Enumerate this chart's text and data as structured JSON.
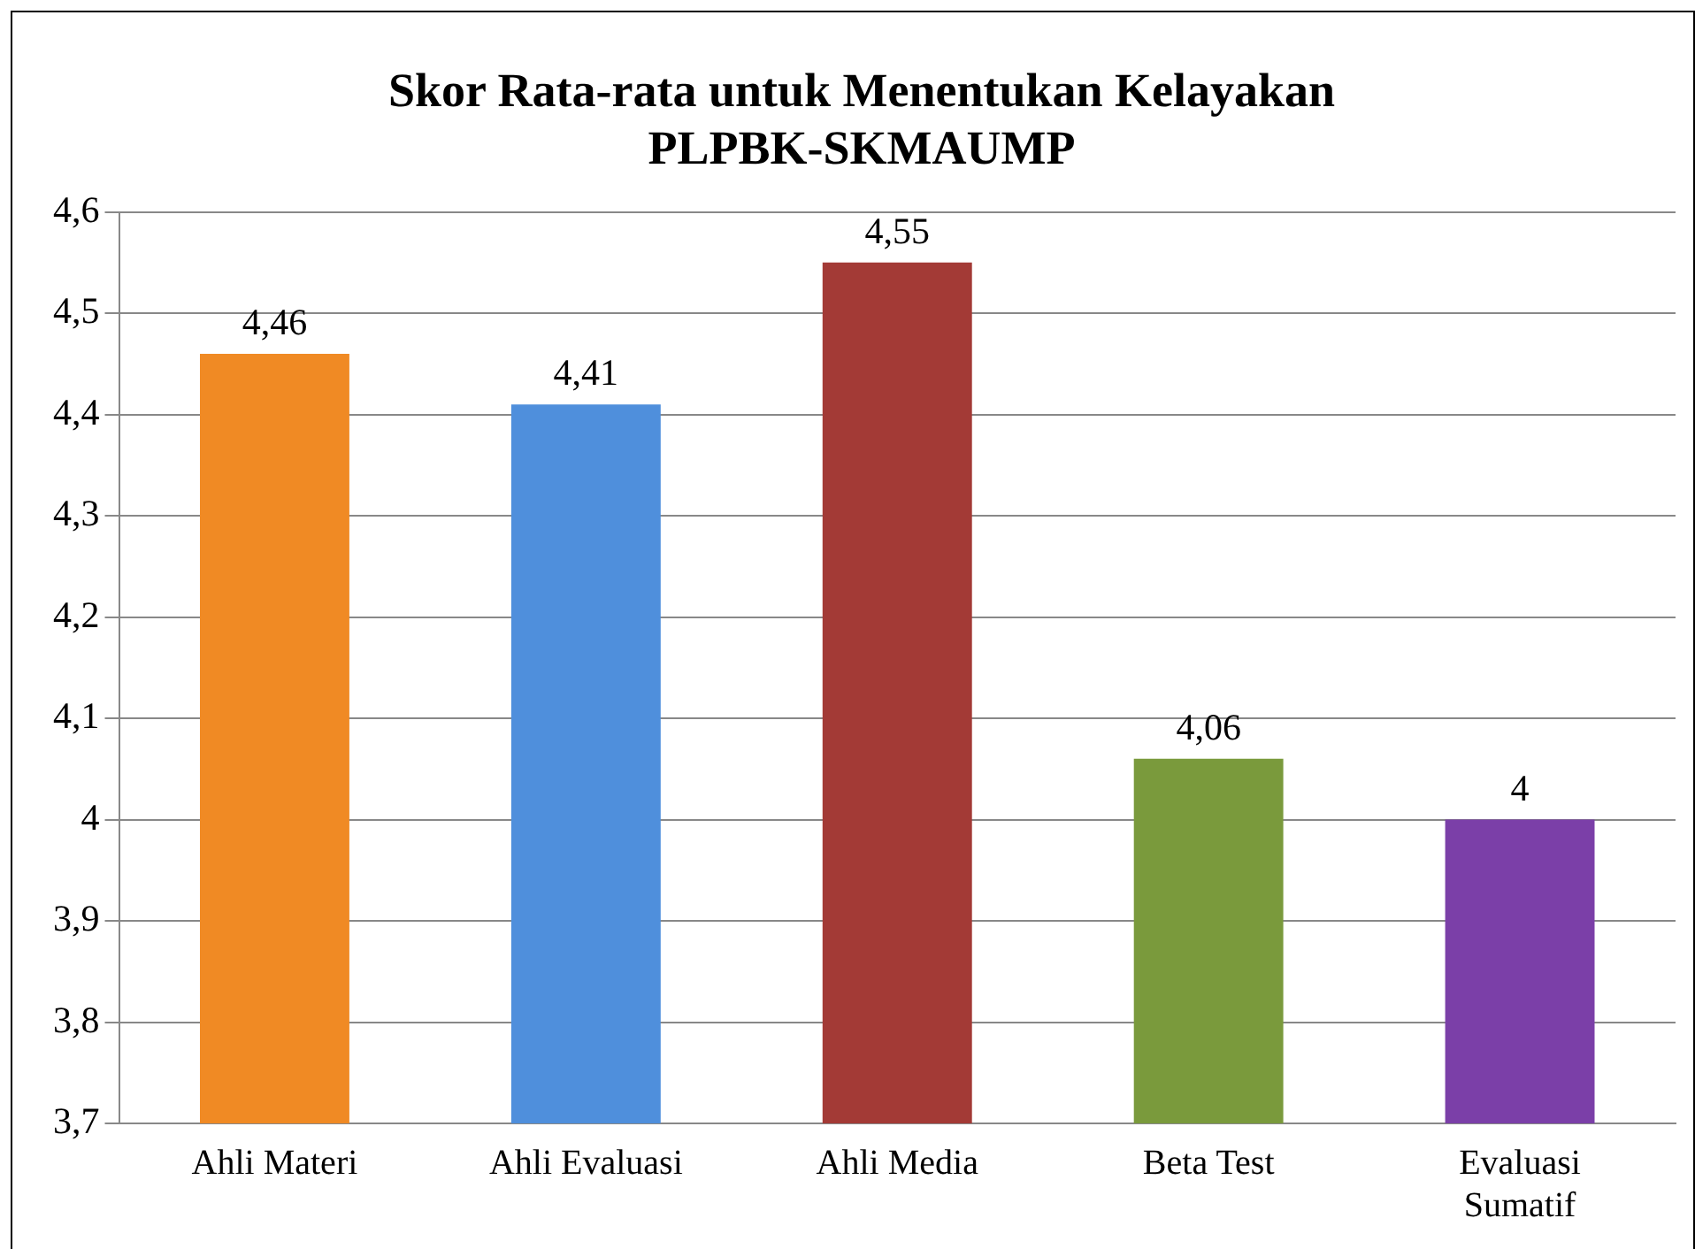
{
  "chart_data": {
    "type": "bar",
    "title": "Skor Rata-rata untuk Menentukan Kelayakan\nPLPBK-SKMAUMP",
    "categories": [
      "Ahli Materi",
      "Ahli Evaluasi",
      "Ahli Media",
      "Beta Test",
      "Evaluasi\nSumatif"
    ],
    "values": [
      4.46,
      4.41,
      4.55,
      4.06,
      4
    ],
    "colors": [
      "#f08a24",
      "#4f8fdc",
      "#a33a36",
      "#7a9a3c",
      "#7b3fa8"
    ],
    "value_labels": [
      "4,46",
      "4,41",
      "4,55",
      "4,06",
      "4"
    ],
    "ylim": [
      3.7,
      4.6
    ],
    "yticks": [
      {
        "value": 3.7,
        "label": "3,7"
      },
      {
        "value": 3.8,
        "label": "3,8"
      },
      {
        "value": 3.9,
        "label": "3,9"
      },
      {
        "value": 4,
        "label": "4"
      },
      {
        "value": 4.1,
        "label": "4,1"
      },
      {
        "value": 4.2,
        "label": "4,2"
      },
      {
        "value": 4.3,
        "label": "4,3"
      },
      {
        "value": 4.4,
        "label": "4,4"
      },
      {
        "value": 4.5,
        "label": "4,5"
      },
      {
        "value": 4.6,
        "label": "4,6"
      }
    ],
    "grid": "y",
    "legend": false
  }
}
